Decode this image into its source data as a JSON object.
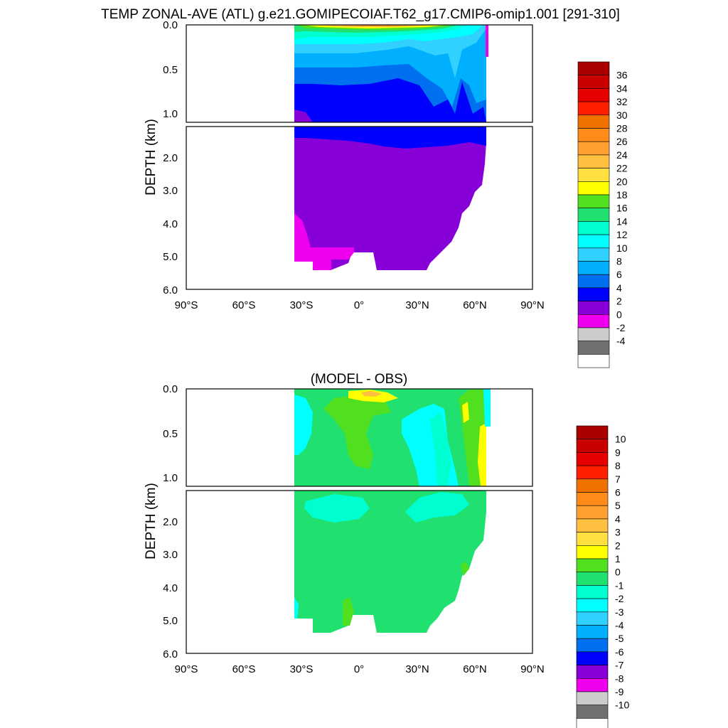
{
  "figure_title": "TEMP ZONAL-AVE (ATL) g.e21.GOMIPECOIAF.T62_g17.CMIP6-omip1.001 [291-310]",
  "chart_data": [
    {
      "type": "contour",
      "title": "TEMP ZONAL-AVE (ATL) g.e21.GOMIPECOIAF.T62_g17.CMIP6-omip1.001 [291-310]",
      "ylabel": "DEPTH (km)",
      "xlabel": "",
      "x_ticks": [
        "90°S",
        "60°S",
        "30°S",
        "0°",
        "30°N",
        "60°N",
        "90°N"
      ],
      "upper_y_ticks": [
        "0.0",
        "0.5",
        "1.0"
      ],
      "lower_y_ticks": [
        "2.0",
        "3.0",
        "4.0",
        "5.0",
        "6.0"
      ],
      "upper_ylim": [
        0,
        1.1
      ],
      "lower_ylim": [
        1.1,
        6.0
      ],
      "xlim": [
        -90,
        90
      ],
      "data_lat_range": [
        -34,
        67
      ],
      "colorbar": {
        "labels": [
          "36",
          "34",
          "32",
          "30",
          "28",
          "26",
          "24",
          "22",
          "20",
          "18",
          "16",
          "14",
          "12",
          "10",
          "8",
          "6",
          "4",
          "2",
          "0",
          "-2",
          "-4"
        ],
        "colors": [
          "#aa0000",
          "#c80000",
          "#e60000",
          "#ff2000",
          "#f07000",
          "#ff8c1a",
          "#ffa030",
          "#ffc040",
          "#ffe040",
          "#ffff00",
          "#50e020",
          "#20e070",
          "#00ffd0",
          "#00ffff",
          "#30d0ff",
          "#00b0ff",
          "#0070f0",
          "#0000ff",
          "#8800d8",
          "#ee00ee",
          "#cccccc",
          "#707070",
          "#ffffff"
        ]
      }
    },
    {
      "type": "contour",
      "title": "(MODEL - OBS)",
      "ylabel": "DEPTH (km)",
      "xlabel": "",
      "x_ticks": [
        "90°S",
        "60°S",
        "30°S",
        "0°",
        "30°N",
        "60°N",
        "90°N"
      ],
      "upper_y_ticks": [
        "0.0",
        "0.5",
        "1.0"
      ],
      "lower_y_ticks": [
        "2.0",
        "3.0",
        "4.0",
        "5.0",
        "6.0"
      ],
      "upper_ylim": [
        0,
        1.1
      ],
      "lower_ylim": [
        1.1,
        6.0
      ],
      "xlim": [
        -90,
        90
      ],
      "data_lat_range": [
        -34,
        67
      ],
      "colorbar": {
        "labels": [
          "10",
          "9",
          "8",
          "7",
          "6",
          "5",
          "4",
          "3",
          "2",
          "1",
          "0",
          "-1",
          "-2",
          "-3",
          "-4",
          "-5",
          "-6",
          "-7",
          "-8",
          "-9",
          "-10"
        ],
        "colors": [
          "#aa0000",
          "#c80000",
          "#e60000",
          "#ff2000",
          "#f07000",
          "#ff8c1a",
          "#ffa030",
          "#ffc040",
          "#ffe040",
          "#ffff00",
          "#50e020",
          "#20e070",
          "#00ffd0",
          "#00ffff",
          "#30d0ff",
          "#00b0ff",
          "#0070f0",
          "#0000ff",
          "#8800d8",
          "#ee00ee",
          "#cccccc",
          "#707070",
          "#ffffff"
        ]
      }
    }
  ]
}
